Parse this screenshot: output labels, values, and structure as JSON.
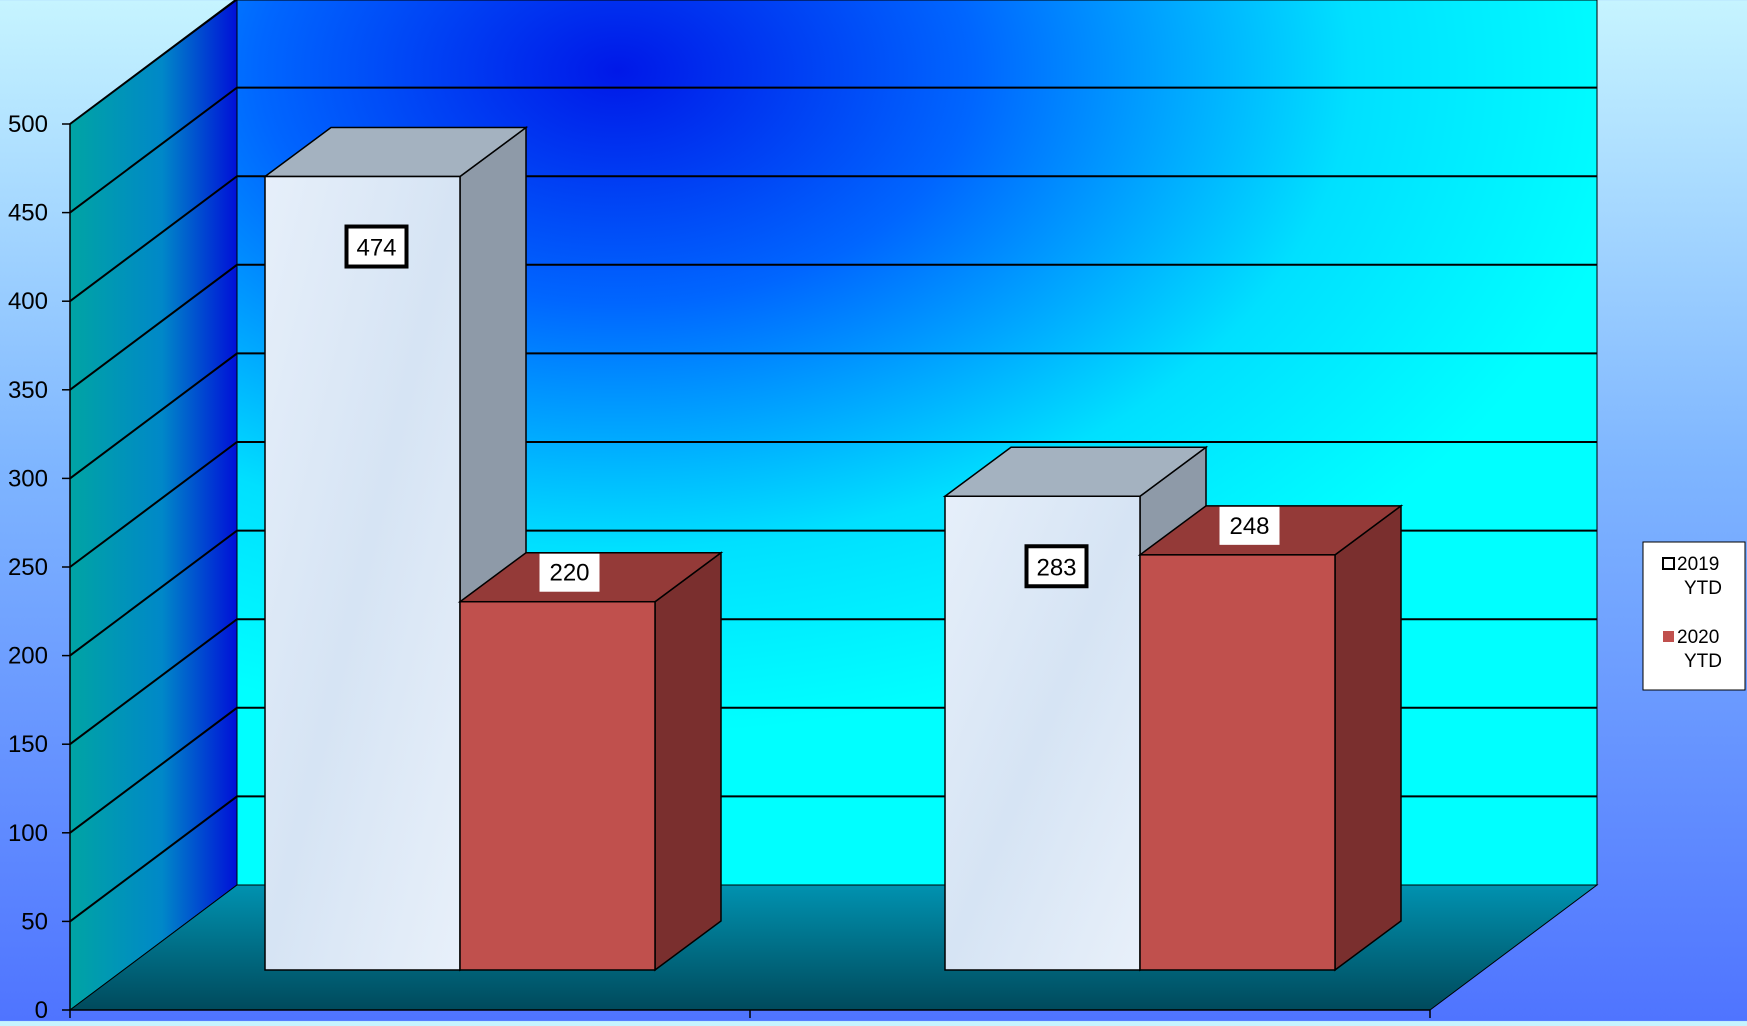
{
  "chart_data": {
    "type": "bar",
    "categories": [
      "",
      ""
    ],
    "series": [
      {
        "name": "2019 YTD",
        "values": [
          474,
          283
        ]
      },
      {
        "name": "2020 YTD",
        "values": [
          220,
          248
        ]
      }
    ],
    "ylim": [
      0,
      500
    ],
    "yticks": [
      0,
      50,
      100,
      150,
      200,
      250,
      300,
      350,
      400,
      450,
      500
    ],
    "ytick_labels": [
      "0",
      "50",
      "100",
      "150",
      "200",
      "250",
      "300",
      "350",
      "400",
      "450",
      "500"
    ],
    "data_labels": [
      [
        "474",
        "283"
      ],
      [
        "220",
        "248"
      ]
    ],
    "legend": {
      "placement": "right",
      "entries": [
        {
          "line1": "2019",
          "line2": "YTD"
        },
        {
          "line1": "2020",
          "line2": "YTD"
        }
      ]
    },
    "colors": {
      "series_2019_front": "#e2ecf8",
      "series_2019_top": "#a4b2c0",
      "series_2019_side": "#8e9aa8",
      "series_2020_front": "#c0504d",
      "series_2020_top": "#943a38",
      "series_2020_side": "#7a2f2e",
      "back_wall": "#00ffff",
      "side_wall": "#00a8a8",
      "floor": "#007a92"
    },
    "grid": true,
    "style": "3d"
  }
}
